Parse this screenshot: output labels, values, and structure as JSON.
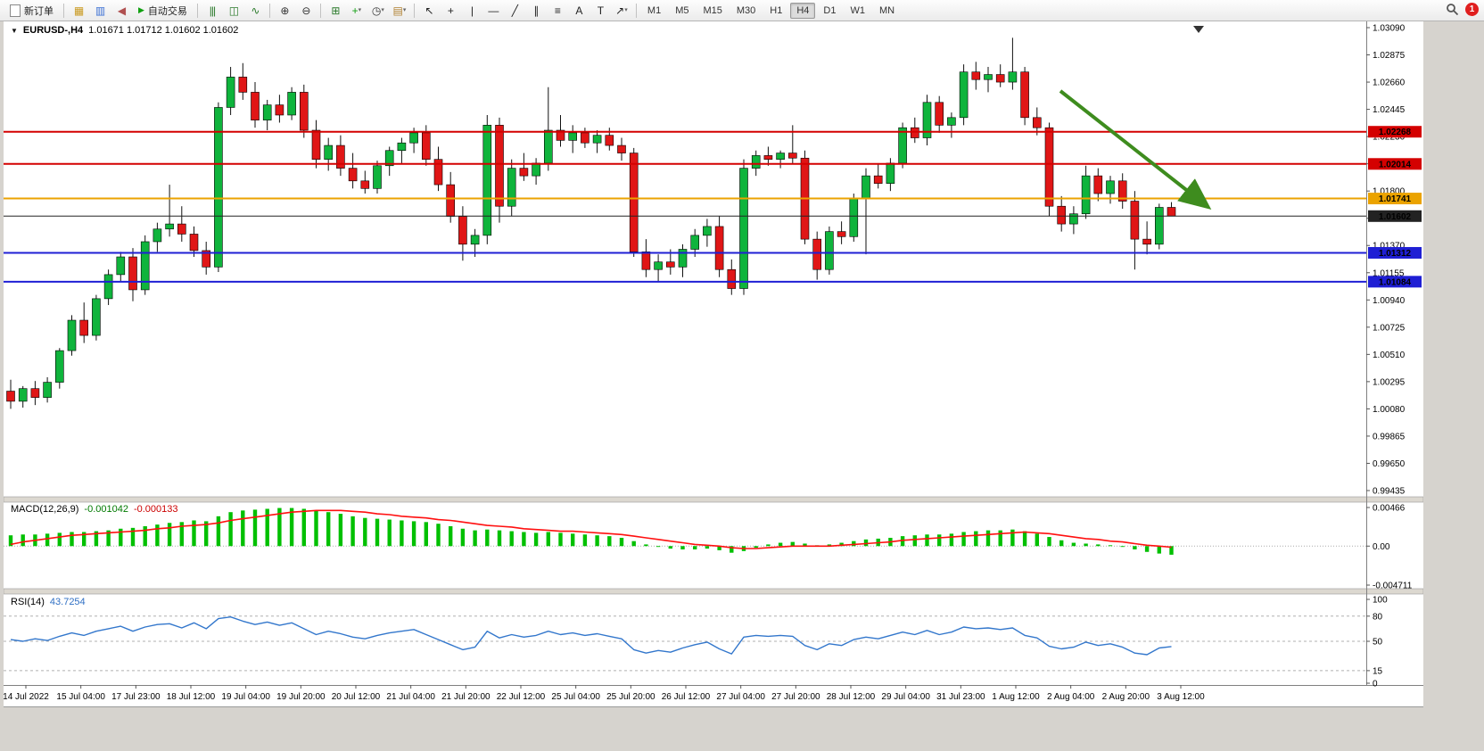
{
  "toolbar": {
    "items": [
      {
        "type": "button",
        "name": "new-order-button",
        "icon": "doc",
        "label": "新订单"
      },
      {
        "type": "sep"
      },
      {
        "type": "icon",
        "name": "charts-icon",
        "glyph": "▦",
        "color": "#c9991e"
      },
      {
        "type": "icon",
        "name": "profiles-icon",
        "glyph": "▥",
        "color": "#3b6fd4"
      },
      {
        "type": "icon",
        "name": "alerts-icon",
        "glyph": "◀",
        "color": "#b05050"
      },
      {
        "type": "button",
        "name": "autotrading-button",
        "icon": "play",
        "label": "自动交易"
      },
      {
        "type": "sep"
      },
      {
        "type": "icon",
        "name": "bar-chart-icon",
        "glyph": "|||",
        "color": "#2a7a2a"
      },
      {
        "type": "icon",
        "name": "candlestick-chart-icon",
        "glyph": "◫",
        "color": "#2a7a2a"
      },
      {
        "type": "icon",
        "name": "line-chart-icon",
        "glyph": "∿",
        "color": "#2a7a2a"
      },
      {
        "type": "sep"
      },
      {
        "type": "icon",
        "name": "zoom-in-icon",
        "glyph": "⊕",
        "color": "#333333"
      },
      {
        "type": "icon",
        "name": "zoom-out-icon",
        "glyph": "⊖",
        "color": "#333333"
      },
      {
        "type": "sep"
      },
      {
        "type": "icon",
        "name": "tile-windows-icon",
        "glyph": "⊞",
        "color": "#2a7a2a"
      },
      {
        "type": "icon",
        "name": "indicators-icon",
        "glyph": "+",
        "color": "#14a014",
        "caret": true
      },
      {
        "type": "icon",
        "name": "periods-icon",
        "glyph": "◷",
        "color": "#333333",
        "caret": true
      },
      {
        "type": "icon",
        "name": "templates-icon",
        "glyph": "▤",
        "color": "#b08030",
        "caret": true
      },
      {
        "type": "sep"
      },
      {
        "type": "icon",
        "name": "cursor-icon",
        "glyph": "↖",
        "color": "#222222"
      },
      {
        "type": "icon",
        "name": "crosshair-icon",
        "glyph": "+",
        "color": "#222222"
      },
      {
        "type": "icon",
        "name": "vertical-line-icon",
        "glyph": "|",
        "color": "#222222"
      },
      {
        "type": "icon",
        "name": "horizontal-line-icon",
        "glyph": "—",
        "color": "#222222"
      },
      {
        "type": "icon",
        "name": "trendline-icon",
        "glyph": "╱",
        "color": "#222222"
      },
      {
        "type": "icon",
        "name": "channel-icon",
        "glyph": "∥",
        "color": "#222222"
      },
      {
        "type": "icon",
        "name": "fibonacci-icon",
        "glyph": "≡",
        "color": "#222222"
      },
      {
        "type": "icon",
        "name": "text-icon",
        "glyph": "A",
        "color": "#222222"
      },
      {
        "type": "icon",
        "name": "label-icon",
        "glyph": "T",
        "color": "#222222"
      },
      {
        "type": "icon",
        "name": "arrows-icon",
        "glyph": "↗",
        "color": "#222222",
        "caret": true
      },
      {
        "type": "sep"
      }
    ],
    "timeframes": [
      "M1",
      "M5",
      "M15",
      "M30",
      "H1",
      "H4",
      "D1",
      "W1",
      "MN"
    ],
    "active_timeframe": "H4",
    "notification_count": "1"
  },
  "chart": {
    "marker_glyph": "▼",
    "title": "EURUSD-,H4",
    "ohlc": "1.01671 1.01712 1.01602 1.01602",
    "price_axis_labels": [
      "1.03090",
      "1.02875",
      "1.02660",
      "1.02445",
      "1.02230",
      "1.02015",
      "1.01800",
      "1.01585",
      "1.01370",
      "1.01155",
      "1.00940",
      "1.00725",
      "1.00510",
      "1.00295",
      "1.00080",
      "0.99865",
      "0.99650",
      "0.99435"
    ],
    "hlines": [
      {
        "value": 1.02268,
        "label": "1.02268",
        "color": "#d40000",
        "width": 2
      },
      {
        "value": 1.02014,
        "label": "1.02014",
        "color": "#d40000",
        "width": 2
      },
      {
        "value": 1.01741,
        "label": "1.01741",
        "color": "#eba300",
        "width": 2
      },
      {
        "value": 1.01602,
        "label": "1.01602",
        "color": "#222222",
        "width": 1
      },
      {
        "value": 1.01312,
        "label": "1.01312",
        "color": "#1f1fd4",
        "width": 2
      },
      {
        "value": 1.01084,
        "label": "1.01084",
        "color": "#1f1fd4",
        "width": 2
      }
    ],
    "arrow": {
      "color": "#3e8c1e"
    },
    "candles": [
      [
        1.0022,
        1.0031,
        1.0008,
        1.0014
      ],
      [
        1.0014,
        1.0026,
        1.0009,
        1.0024
      ],
      [
        1.0024,
        1.003,
        1.0011,
        1.0017
      ],
      [
        1.0017,
        1.0033,
        1.0013,
        1.0029
      ],
      [
        1.0029,
        1.0056,
        1.0024,
        1.0054
      ],
      [
        1.0054,
        1.0082,
        1.005,
        1.0078
      ],
      [
        1.0078,
        1.0092,
        1.006,
        1.0066
      ],
      [
        1.0066,
        1.0098,
        1.0062,
        1.0095
      ],
      [
        1.0095,
        1.0118,
        1.009,
        1.0114
      ],
      [
        1.0114,
        1.0132,
        1.0108,
        1.0128
      ],
      [
        1.0128,
        1.0135,
        1.0093,
        1.0102
      ],
      [
        1.0102,
        1.0145,
        1.0098,
        1.014
      ],
      [
        1.014,
        1.0155,
        1.0132,
        1.015
      ],
      [
        1.015,
        1.0185,
        1.0144,
        1.0154
      ],
      [
        1.0154,
        1.0168,
        1.014,
        1.0146
      ],
      [
        1.0146,
        1.0152,
        1.0128,
        1.0133
      ],
      [
        1.0133,
        1.014,
        1.0114,
        1.012
      ],
      [
        1.012,
        1.025,
        1.0116,
        1.0246
      ],
      [
        1.0246,
        1.0278,
        1.024,
        1.027
      ],
      [
        1.027,
        1.0281,
        1.0252,
        1.0258
      ],
      [
        1.0258,
        1.0266,
        1.023,
        1.0236
      ],
      [
        1.0236,
        1.0252,
        1.0228,
        1.0248
      ],
      [
        1.0248,
        1.0256,
        1.0234,
        1.024
      ],
      [
        1.024,
        1.0262,
        1.0236,
        1.0258
      ],
      [
        1.0258,
        1.0264,
        1.0222,
        1.0228
      ],
      [
        1.0228,
        1.0236,
        1.0198,
        1.0205
      ],
      [
        1.0205,
        1.0222,
        1.0196,
        1.0216
      ],
      [
        1.0216,
        1.0224,
        1.0192,
        1.0198
      ],
      [
        1.0198,
        1.021,
        1.0182,
        1.0188
      ],
      [
        1.0188,
        1.0196,
        1.0178,
        1.0182
      ],
      [
        1.0182,
        1.0204,
        1.0178,
        1.02
      ],
      [
        1.02,
        1.0215,
        1.0192,
        1.0212
      ],
      [
        1.0212,
        1.0222,
        1.0202,
        1.0218
      ],
      [
        1.0218,
        1.023,
        1.021,
        1.0226
      ],
      [
        1.0226,
        1.0232,
        1.02,
        1.0205
      ],
      [
        1.0205,
        1.0215,
        1.018,
        1.0185
      ],
      [
        1.0185,
        1.0195,
        1.0155,
        1.016
      ],
      [
        1.016,
        1.0168,
        1.0125,
        1.0138
      ],
      [
        1.0138,
        1.015,
        1.0128,
        1.0145
      ],
      [
        1.0145,
        1.024,
        1.0138,
        1.0232
      ],
      [
        1.0232,
        1.0238,
        1.0155,
        1.0168
      ],
      [
        1.0168,
        1.0205,
        1.016,
        1.0198
      ],
      [
        1.0198,
        1.021,
        1.0188,
        1.0192
      ],
      [
        1.0192,
        1.0206,
        1.0185,
        1.0202
      ],
      [
        1.0202,
        1.0262,
        1.0196,
        1.0228
      ],
      [
        1.0228,
        1.024,
        1.0215,
        1.022
      ],
      [
        1.022,
        1.0232,
        1.021,
        1.0226
      ],
      [
        1.0226,
        1.023,
        1.0214,
        1.0218
      ],
      [
        1.0218,
        1.0228,
        1.021,
        1.0224
      ],
      [
        1.0224,
        1.023,
        1.0212,
        1.0216
      ],
      [
        1.0216,
        1.0222,
        1.0204,
        1.021
      ],
      [
        1.021,
        1.0214,
        1.0128,
        1.0132
      ],
      [
        1.0132,
        1.0142,
        1.0112,
        1.0118
      ],
      [
        1.0118,
        1.013,
        1.0108,
        1.0124
      ],
      [
        1.0124,
        1.0134,
        1.0114,
        1.012
      ],
      [
        1.012,
        1.0138,
        1.0112,
        1.0134
      ],
      [
        1.0134,
        1.015,
        1.0128,
        1.0145
      ],
      [
        1.0145,
        1.0158,
        1.0136,
        1.0152
      ],
      [
        1.0152,
        1.016,
        1.0112,
        1.0118
      ],
      [
        1.0118,
        1.0126,
        1.0098,
        1.0103
      ],
      [
        1.0103,
        1.0205,
        1.0098,
        1.0198
      ],
      [
        1.0198,
        1.0212,
        1.0192,
        1.0208
      ],
      [
        1.0208,
        1.0215,
        1.02,
        1.0205
      ],
      [
        1.0205,
        1.0212,
        1.0198,
        1.021
      ],
      [
        1.021,
        1.0232,
        1.0202,
        1.0206
      ],
      [
        1.0206,
        1.0212,
        1.0138,
        1.0142
      ],
      [
        1.0142,
        1.0148,
        1.011,
        1.0118
      ],
      [
        1.0118,
        1.0152,
        1.0114,
        1.0148
      ],
      [
        1.0148,
        1.0156,
        1.0138,
        1.0144
      ],
      [
        1.0144,
        1.0178,
        1.014,
        1.0174
      ],
      [
        1.0174,
        1.0198,
        1.013,
        1.0192
      ],
      [
        1.0192,
        1.0202,
        1.0182,
        1.0186
      ],
      [
        1.0186,
        1.0206,
        1.018,
        1.0202
      ],
      [
        1.0202,
        1.0234,
        1.0198,
        1.023
      ],
      [
        1.023,
        1.0238,
        1.0218,
        1.0222
      ],
      [
        1.0222,
        1.0256,
        1.0216,
        1.025
      ],
      [
        1.025,
        1.0255,
        1.0226,
        1.0232
      ],
      [
        1.0232,
        1.0242,
        1.0222,
        1.0238
      ],
      [
        1.0238,
        1.028,
        1.0232,
        1.0274
      ],
      [
        1.0274,
        1.0282,
        1.026,
        1.0268
      ],
      [
        1.0268,
        1.0278,
        1.0258,
        1.0272
      ],
      [
        1.0272,
        1.028,
        1.0262,
        1.0266
      ],
      [
        1.0266,
        1.0301,
        1.026,
        1.0274
      ],
      [
        1.0274,
        1.0278,
        1.0232,
        1.0238
      ],
      [
        1.0238,
        1.0246,
        1.0224,
        1.023
      ],
      [
        1.023,
        1.0234,
        1.016,
        1.0168
      ],
      [
        1.0168,
        1.0176,
        1.0148,
        1.0154
      ],
      [
        1.0154,
        1.0168,
        1.0146,
        1.0162
      ],
      [
        1.0162,
        1.02,
        1.0158,
        1.0192
      ],
      [
        1.0192,
        1.0198,
        1.0172,
        1.0178
      ],
      [
        1.0178,
        1.0192,
        1.017,
        1.0188
      ],
      [
        1.0188,
        1.0194,
        1.0166,
        1.0172
      ],
      [
        1.0172,
        1.018,
        1.0118,
        1.0142
      ],
      [
        1.0142,
        1.0156,
        1.013,
        1.0138
      ],
      [
        1.0138,
        1.017,
        1.0134,
        1.01671
      ],
      [
        1.01671,
        1.01712,
        1.01602,
        1.01602
      ]
    ]
  },
  "macd": {
    "label": "MACD(12,26,9)",
    "value_main": "-0.001042",
    "value_signal": "-0.000133",
    "axis_labels": [
      "0.00466",
      "0.00",
      "-0.004711"
    ],
    "axis_max": 0.00466,
    "axis_min": -0.004711,
    "colors": {
      "histogram": "#00c000",
      "signal": "#ff1010"
    },
    "histogram": [
      0.0013,
      0.0014,
      0.0014,
      0.0015,
      0.0016,
      0.0017,
      0.0017,
      0.0018,
      0.0019,
      0.0021,
      0.0022,
      0.0024,
      0.0026,
      0.0028,
      0.0029,
      0.0031,
      0.003,
      0.0036,
      0.0041,
      0.0043,
      0.0044,
      0.0045,
      0.0046,
      0.0046,
      0.0045,
      0.0043,
      0.0041,
      0.0039,
      0.0036,
      0.0034,
      0.0033,
      0.0032,
      0.0031,
      0.003,
      0.0029,
      0.0027,
      0.0024,
      0.0021,
      0.0019,
      0.002,
      0.0019,
      0.0018,
      0.0017,
      0.0016,
      0.0017,
      0.0016,
      0.0015,
      0.0014,
      0.0013,
      0.0012,
      0.001,
      0.0006,
      0.0002,
      -0.0001,
      -0.0003,
      -0.0004,
      -0.0004,
      -0.0003,
      -0.0005,
      -0.0008,
      -0.0006,
      -0.0002,
      0.0002,
      0.0004,
      0.0005,
      0.0003,
      0.0001,
      0.0002,
      0.0004,
      0.0006,
      0.0008,
      0.0009,
      0.001,
      0.0012,
      0.0013,
      0.0014,
      0.0014,
      0.0015,
      0.0017,
      0.0018,
      0.0019,
      0.0019,
      0.002,
      0.0018,
      0.0015,
      0.0011,
      0.0007,
      0.0004,
      0.0003,
      0.0002,
      0.0001,
      -0.0001,
      -0.0004,
      -0.0007,
      -0.0009,
      -0.001042
    ],
    "signal": [
      0.0002,
      0.0005,
      0.0007,
      0.0009,
      0.0011,
      0.0013,
      0.0014,
      0.0015,
      0.0016,
      0.0017,
      0.0018,
      0.0019,
      0.0021,
      0.0022,
      0.0024,
      0.0025,
      0.0026,
      0.0028,
      0.0031,
      0.0033,
      0.0035,
      0.0037,
      0.0039,
      0.0041,
      0.0042,
      0.0043,
      0.0043,
      0.0043,
      0.0042,
      0.0041,
      0.0039,
      0.0038,
      0.0036,
      0.0035,
      0.0034,
      0.0032,
      0.0031,
      0.0029,
      0.0027,
      0.0025,
      0.0024,
      0.0023,
      0.0021,
      0.002,
      0.0019,
      0.0018,
      0.0018,
      0.0017,
      0.0016,
      0.0015,
      0.0014,
      0.0012,
      0.001,
      0.0008,
      0.0006,
      0.0004,
      0.0002,
      0.0001,
      0.0,
      -0.0002,
      -0.0003,
      -0.0003,
      -0.0002,
      -0.0001,
      0.0,
      0.0,
      0.0,
      0.0,
      0.0001,
      0.0002,
      0.0003,
      0.0004,
      0.0005,
      0.0007,
      0.0008,
      0.0009,
      0.001,
      0.0011,
      0.0012,
      0.0013,
      0.0014,
      0.0015,
      0.0016,
      0.0017,
      0.0016,
      0.0015,
      0.0013,
      0.0011,
      0.0009,
      0.0008,
      0.0006,
      0.0005,
      0.0003,
      0.0001,
      0.0,
      -0.000133
    ]
  },
  "rsi": {
    "label": "RSI(14)",
    "value": "43.7254",
    "color": "#3377cc",
    "axis_labels": [
      "100",
      "80",
      "50",
      "15",
      "0"
    ],
    "levels": [
      80,
      50,
      15
    ],
    "series": [
      52,
      50,
      53,
      51,
      56,
      60,
      57,
      62,
      65,
      68,
      62,
      67,
      70,
      71,
      66,
      72,
      65,
      77,
      79,
      74,
      70,
      73,
      69,
      72,
      65,
      58,
      62,
      59,
      55,
      53,
      57,
      60,
      62,
      64,
      58,
      52,
      46,
      40,
      43,
      62,
      54,
      58,
      55,
      57,
      62,
      58,
      60,
      57,
      59,
      56,
      53,
      40,
      36,
      39,
      37,
      42,
      46,
      49,
      41,
      35,
      55,
      57,
      56,
      57,
      56,
      45,
      40,
      47,
      45,
      52,
      55,
      53,
      57,
      61,
      58,
      63,
      58,
      61,
      67,
      65,
      66,
      64,
      66,
      57,
      54,
      44,
      41,
      43,
      49,
      45,
      47,
      43,
      36,
      34,
      42,
      43.7254
    ]
  },
  "time_axis": [
    "14 Jul 2022",
    "15 Jul 04:00",
    "17 Jul 23:00",
    "18 Jul 12:00",
    "19 Jul 04:00",
    "19 Jul 20:00",
    "20 Jul 12:00",
    "21 Jul 04:00",
    "21 Jul 20:00",
    "22 Jul 12:00",
    "25 Jul 04:00",
    "25 Jul 20:00",
    "26 Jul 12:00",
    "27 Jul 04:00",
    "27 Jul 20:00",
    "28 Jul 12:00",
    "29 Jul 04:00",
    "31 Jul 23:00",
    "1 Aug 12:00",
    "2 Aug 04:00",
    "2 Aug 20:00",
    "3 Aug 12:00"
  ],
  "colors": {
    "up": "#0fb43c",
    "down": "#e01616",
    "wick": "#111111",
    "chrome": "#d6d3ce",
    "background": "#ffffff"
  }
}
